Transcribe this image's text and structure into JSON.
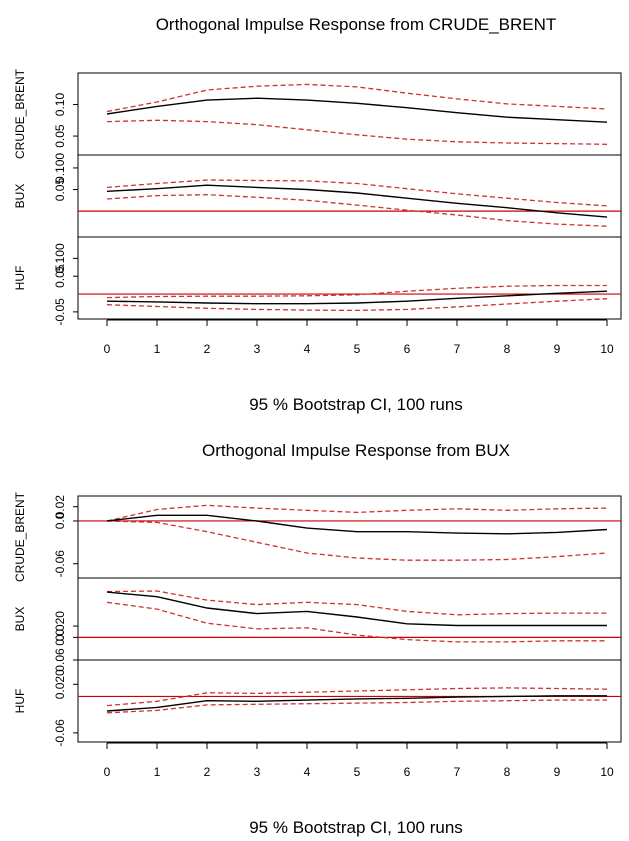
{
  "chart_data": [
    {
      "type": "line",
      "title": "Orthogonal Impulse Response from CRUDE_BRENT",
      "caption": "95 % Bootstrap CI,  100 runs",
      "x": [
        0,
        1,
        2,
        3,
        4,
        5,
        6,
        7,
        8,
        9,
        10
      ],
      "xlim": [
        0,
        10
      ],
      "grid": false,
      "reference_line": 0,
      "reference_line_color": "#cc0000",
      "response_color": "#000000",
      "ci_color": "#cc3333",
      "panels": [
        {
          "ylabel": "CRUDE_BRENT",
          "yticks": [
            0.1,
            0.05
          ],
          "ytick_labels": [
            "0.10",
            "0.05"
          ],
          "ylim": [
            0.02,
            0.15
          ],
          "response": [
            0.085,
            0.097,
            0.107,
            0.11,
            0.107,
            0.102,
            0.095,
            0.087,
            0.08,
            0.076,
            0.072
          ],
          "lower": [
            0.073,
            0.075,
            0.073,
            0.068,
            0.06,
            0.052,
            0.045,
            0.041,
            0.039,
            0.038,
            0.037
          ],
          "upper": [
            0.089,
            0.104,
            0.123,
            0.129,
            0.132,
            0.128,
            0.118,
            0.109,
            0.101,
            0.097,
            0.093
          ]
        },
        {
          "ylabel": "BUX",
          "yticks": [
            0.1,
            0.05
          ],
          "ytick_labels": [
            "0.100",
            "0.05"
          ],
          "ylim": [
            -0.06,
            0.13
          ],
          "response": [
            0.046,
            0.052,
            0.06,
            0.055,
            0.05,
            0.042,
            0.03,
            0.018,
            0.008,
            -0.004,
            -0.014
          ],
          "lower": [
            0.028,
            0.036,
            0.038,
            0.032,
            0.025,
            0.014,
            0.002,
            -0.009,
            -0.022,
            -0.03,
            -0.035
          ],
          "upper": [
            0.055,
            0.064,
            0.072,
            0.071,
            0.07,
            0.064,
            0.052,
            0.04,
            0.03,
            0.02,
            0.012
          ]
        },
        {
          "ylabel": "HUF",
          "yticks": [
            0.1,
            0.05,
            -0.05
          ],
          "ytick_labels": [
            "0.100",
            "0.05",
            "-0.05"
          ],
          "ylim": [
            -0.07,
            0.16
          ],
          "response": [
            -0.02,
            -0.022,
            -0.025,
            -0.027,
            -0.027,
            -0.025,
            -0.02,
            -0.012,
            -0.005,
            0.002,
            0.008
          ],
          "lower": [
            -0.03,
            -0.035,
            -0.04,
            -0.043,
            -0.045,
            -0.046,
            -0.043,
            -0.036,
            -0.028,
            -0.02,
            -0.013
          ],
          "upper": [
            -0.01,
            -0.007,
            -0.006,
            -0.006,
            -0.005,
            -0.002,
            0.008,
            0.016,
            0.022,
            0.024,
            0.024
          ]
        }
      ]
    },
    {
      "type": "line",
      "title": "Orthogonal Impulse Response from BUX",
      "caption": "95 % Bootstrap CI,  100 runs",
      "x": [
        0,
        1,
        2,
        3,
        4,
        5,
        6,
        7,
        8,
        9,
        10
      ],
      "xlim": [
        0,
        10
      ],
      "grid": false,
      "reference_line": 0,
      "reference_line_color": "#cc0000",
      "response_color": "#000000",
      "ci_color": "#cc3333",
      "panels": [
        {
          "ylabel": "CRUDE_BRENT",
          "yticks": [
            0.02,
            0.0,
            -0.06
          ],
          "ytick_labels": [
            "0.02",
            "0.0",
            "-0.06"
          ],
          "ylim": [
            -0.08,
            0.035
          ],
          "response": [
            0.0,
            0.008,
            0.008,
            0.0,
            -0.01,
            -0.015,
            -0.015,
            -0.017,
            -0.018,
            -0.016,
            -0.012
          ],
          "lower": [
            0.0,
            -0.002,
            -0.015,
            -0.03,
            -0.045,
            -0.052,
            -0.055,
            -0.055,
            -0.054,
            -0.05,
            -0.045
          ],
          "upper": [
            0.0,
            0.016,
            0.022,
            0.018,
            0.015,
            0.012,
            0.015,
            0.017,
            0.015,
            0.017,
            0.018
          ]
        },
        {
          "ylabel": "BUX",
          "yticks": [
            0.02,
            0.0
          ],
          "ytick_labels": [
            "0.020",
            "0.0"
          ],
          "ylim": [
            -0.04,
            0.105
          ],
          "response": [
            0.08,
            0.072,
            0.052,
            0.042,
            0.046,
            0.036,
            0.024,
            0.021,
            0.021,
            0.021,
            0.021
          ],
          "lower": [
            0.062,
            0.05,
            0.025,
            0.015,
            0.017,
            0.004,
            -0.004,
            -0.008,
            -0.008,
            -0.006,
            -0.006
          ],
          "upper": [
            0.081,
            0.082,
            0.066,
            0.058,
            0.062,
            0.058,
            0.046,
            0.04,
            0.042,
            0.043,
            0.043
          ]
        },
        {
          "ylabel": "HUF",
          "yticks": [
            0.06,
            0.02,
            -0.06
          ],
          "ytick_labels": [
            "0.06",
            "0.020",
            "-0.06"
          ],
          "ylim": [
            -0.075,
            0.06
          ],
          "response": [
            -0.024,
            -0.018,
            -0.007,
            -0.008,
            -0.006,
            -0.004,
            -0.003,
            -0.001,
            0.0,
            0.001,
            0.001
          ],
          "lower": [
            -0.027,
            -0.023,
            -0.014,
            -0.013,
            -0.012,
            -0.011,
            -0.01,
            -0.008,
            -0.007,
            -0.006,
            -0.006
          ],
          "upper": [
            -0.015,
            -0.008,
            0.006,
            0.005,
            0.007,
            0.009,
            0.011,
            0.013,
            0.014,
            0.013,
            0.012
          ]
        }
      ]
    }
  ]
}
